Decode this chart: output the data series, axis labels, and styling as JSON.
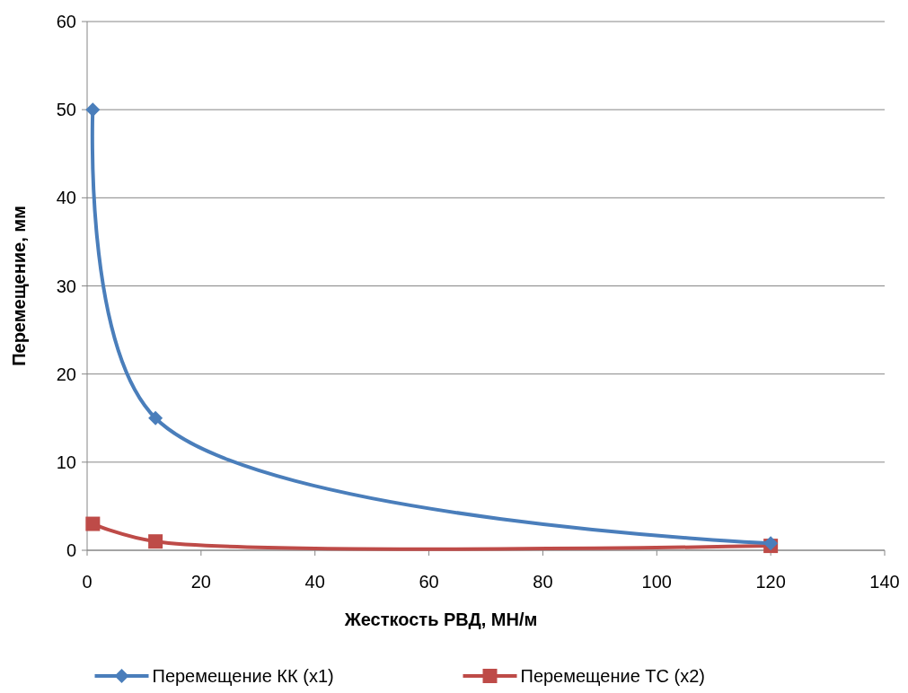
{
  "chart_data": {
    "type": "line",
    "xlabel": "Жесткость РВД,  МН/м",
    "ylabel": "Перемещение, мм",
    "xlim": [
      0,
      140
    ],
    "xticks": [
      0,
      20,
      40,
      60,
      80,
      100,
      120,
      140
    ],
    "ylim": [
      0,
      60
    ],
    "yticks": [
      0,
      10,
      20,
      30,
      40,
      50,
      60
    ],
    "grid": "y",
    "legend": "bottom",
    "series": [
      {
        "name": "Перемещение КК (x1)",
        "color": "#4a7ebb",
        "marker": "diamond",
        "x": [
          1,
          12,
          120
        ],
        "values": [
          50,
          15,
          0.8
        ]
      },
      {
        "name": "Перемещение ТС (x2)",
        "color": "#be4b48",
        "marker": "square",
        "x": [
          1,
          12,
          120
        ],
        "values": [
          3,
          1,
          0.5
        ]
      }
    ]
  }
}
